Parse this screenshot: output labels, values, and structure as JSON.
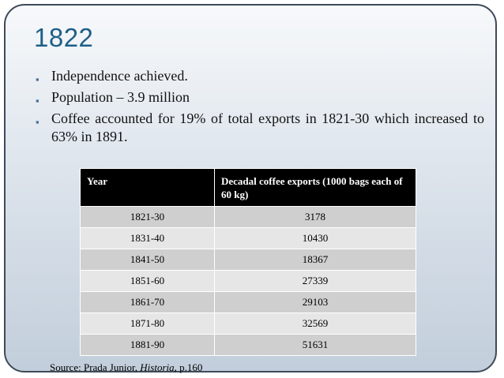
{
  "slide": {
    "title": "1822",
    "bullets": [
      "Independence achieved.",
      "Population – 3.9 million",
      "Coffee accounted for 19% of total exports in 1821-30 which increased to 63% in 1891."
    ],
    "bullet_glyph": "▪",
    "accent_color": "#1f5f86"
  },
  "table": {
    "headers": [
      "Year",
      "Decadal coffee exports (1000 bags each of 60 kg)"
    ],
    "rows": [
      [
        "1821-30",
        "3178"
      ],
      [
        "1831-40",
        "10430"
      ],
      [
        "1841-50",
        "18367"
      ],
      [
        "1851-60",
        "27339"
      ],
      [
        "1861-70",
        "29103"
      ],
      [
        "1871-80",
        "32569"
      ],
      [
        "1881-90",
        "51631"
      ]
    ]
  },
  "source": {
    "prefix": "Source: Prada Junior, ",
    "work": "Historia",
    "suffix": ", p.160"
  }
}
